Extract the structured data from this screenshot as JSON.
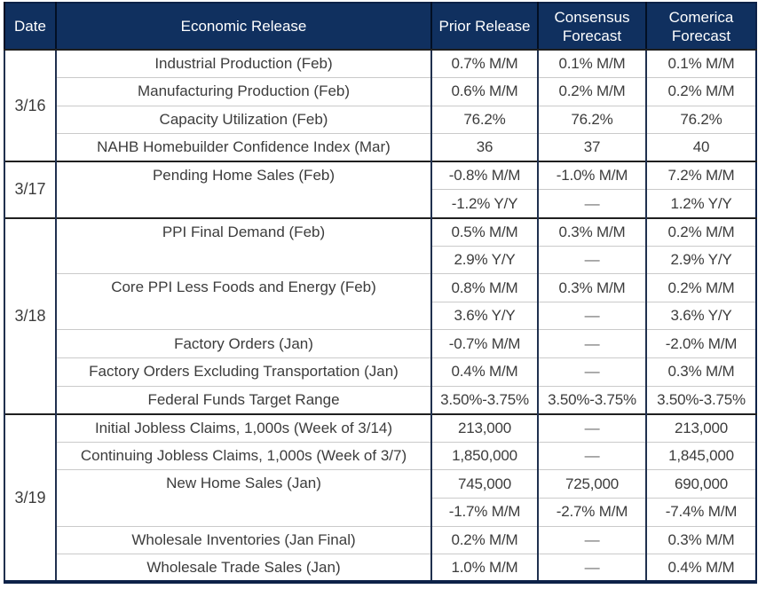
{
  "chart_data": {
    "type": "table",
    "title": "",
    "columns": [
      "Date",
      "Economic Release",
      "Prior Release",
      "Consensus Forecast",
      "Comerica Forecast"
    ],
    "groups": [
      {
        "date": "3/16",
        "rows": [
          {
            "release": "Industrial Production (Feb)",
            "prior": "0.7% M/M",
            "consensus": "0.1% M/M",
            "comerica": "0.1% M/M"
          },
          {
            "release": "Manufacturing Production (Feb)",
            "prior": "0.6% M/M",
            "consensus": "0.2% M/M",
            "comerica": "0.2% M/M"
          },
          {
            "release": "Capacity Utilization (Feb)",
            "prior": "76.2%",
            "consensus": "76.2%",
            "comerica": "76.2%"
          },
          {
            "release": "NAHB Homebuilder Confidence Index (Mar)",
            "prior": "36",
            "consensus": "37",
            "comerica": "40"
          }
        ]
      },
      {
        "date": "3/17",
        "rows": [
          {
            "release": "Pending Home Sales (Feb)",
            "release_rowspan": 2,
            "prior": "-0.8% M/M",
            "consensus": "-1.0% M/M",
            "comerica": "7.2% M/M"
          },
          {
            "prior": "-1.2% Y/Y",
            "consensus": "—",
            "comerica": "1.2% Y/Y"
          }
        ]
      },
      {
        "date": "3/18",
        "rows": [
          {
            "release": "PPI Final Demand (Feb)",
            "release_rowspan": 2,
            "prior": "0.5% M/M",
            "consensus": "0.3% M/M",
            "comerica": "0.2% M/M"
          },
          {
            "prior": "2.9% Y/Y",
            "consensus": "—",
            "comerica": "2.9% Y/Y"
          },
          {
            "release": "Core PPI Less Foods and Energy (Feb)",
            "release_rowspan": 2,
            "prior": "0.8% M/M",
            "consensus": "0.3% M/M",
            "comerica": "0.2% M/M"
          },
          {
            "prior": "3.6% Y/Y",
            "consensus": "—",
            "comerica": "3.6% Y/Y"
          },
          {
            "release": "Factory Orders (Jan)",
            "prior": "-0.7% M/M",
            "consensus": "—",
            "comerica": "-2.0% M/M"
          },
          {
            "release": "Factory Orders Excluding Transportation (Jan)",
            "prior": "0.4% M/M",
            "consensus": "—",
            "comerica": "0.3% M/M"
          },
          {
            "release": "Federal Funds Target Range",
            "prior": "3.50%-3.75%",
            "consensus": "3.50%-3.75%",
            "comerica": "3.50%-3.75%"
          }
        ]
      },
      {
        "date": "3/19",
        "rows": [
          {
            "release": "Initial Jobless Claims, 1,000s (Week of 3/14)",
            "prior": "213,000",
            "consensus": "—",
            "comerica": "213,000"
          },
          {
            "release": "Continuing Jobless Claims, 1,000s (Week of 3/7)",
            "prior": "1,850,000",
            "consensus": "—",
            "comerica": "1,845,000"
          },
          {
            "release": "New Home Sales (Jan)",
            "release_rowspan": 2,
            "prior": "745,000",
            "consensus": "725,000",
            "comerica": "690,000"
          },
          {
            "prior": "-1.7% M/M",
            "consensus": "-2.7% M/M",
            "comerica": "-7.4% M/M"
          },
          {
            "release": "Wholesale Inventories (Jan Final)",
            "prior": "0.2% M/M",
            "consensus": "—",
            "comerica": "0.3% M/M"
          },
          {
            "release": "Wholesale Trade Sales (Jan)",
            "prior": "1.0% M/M",
            "consensus": "—",
            "comerica": "0.4% M/M"
          }
        ]
      }
    ],
    "colors": {
      "header_bg": "#10305f",
      "header_text": "#ffffff",
      "body_text": "#3c3c3c",
      "grid_light": "#cacaca",
      "grid_dark": "#1f1f1f",
      "outer_border": "#0d2248"
    },
    "layout": {
      "grid": "on",
      "legend": "none"
    }
  }
}
